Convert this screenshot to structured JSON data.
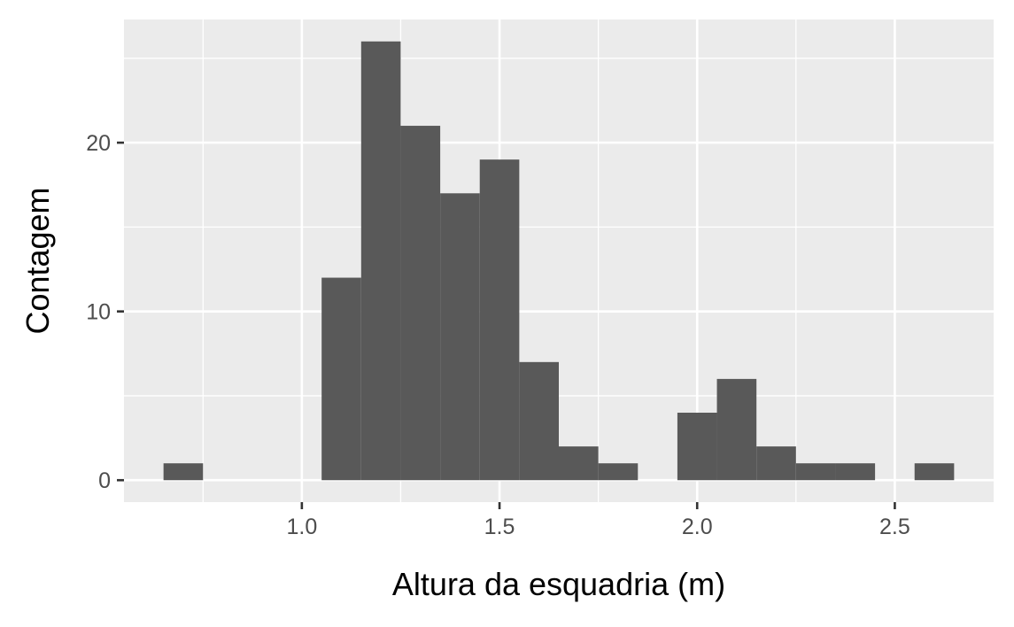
{
  "chart_data": {
    "type": "bar",
    "xlabel": "Altura da esquadria (m)",
    "ylabel": "Contagem",
    "bins": [
      {
        "x0": 0.65,
        "x1": 0.75,
        "count": 1
      },
      {
        "x0": 0.75,
        "x1": 0.85,
        "count": 0
      },
      {
        "x0": 0.85,
        "x1": 0.95,
        "count": 0
      },
      {
        "x0": 0.95,
        "x1": 1.05,
        "count": 0
      },
      {
        "x0": 1.05,
        "x1": 1.15,
        "count": 12
      },
      {
        "x0": 1.15,
        "x1": 1.25,
        "count": 26
      },
      {
        "x0": 1.25,
        "x1": 1.35,
        "count": 21
      },
      {
        "x0": 1.35,
        "x1": 1.45,
        "count": 17
      },
      {
        "x0": 1.45,
        "x1": 1.55,
        "count": 19
      },
      {
        "x0": 1.55,
        "x1": 1.65,
        "count": 7
      },
      {
        "x0": 1.65,
        "x1": 1.75,
        "count": 2
      },
      {
        "x0": 1.75,
        "x1": 1.85,
        "count": 1
      },
      {
        "x0": 1.85,
        "x1": 1.95,
        "count": 0
      },
      {
        "x0": 1.95,
        "x1": 2.05,
        "count": 4
      },
      {
        "x0": 2.05,
        "x1": 2.15,
        "count": 6
      },
      {
        "x0": 2.15,
        "x1": 2.25,
        "count": 2
      },
      {
        "x0": 2.25,
        "x1": 2.35,
        "count": 1
      },
      {
        "x0": 2.35,
        "x1": 2.45,
        "count": 1
      },
      {
        "x0": 2.45,
        "x1": 2.55,
        "count": 0
      },
      {
        "x0": 2.55,
        "x1": 2.65,
        "count": 1
      }
    ],
    "xlim": [
      0.55,
      2.75
    ],
    "ylim": [
      -1.3,
      27.3
    ],
    "x_ticks": [
      1.0,
      1.5,
      2.0,
      2.5
    ],
    "x_tick_labels": [
      "1.0",
      "1.5",
      "2.0",
      "2.5"
    ],
    "x_minor_ticks": [
      0.75,
      1.25,
      1.75,
      2.25
    ],
    "y_ticks": [
      0,
      10,
      20
    ],
    "y_tick_labels": [
      "0",
      "10",
      "20"
    ],
    "y_minor_ticks": [
      5,
      15,
      25
    ],
    "grid": true,
    "colors": {
      "panel": "#ebebeb",
      "grid": "#ffffff",
      "bar": "#595959",
      "tick": "#333333",
      "tick_label": "#4d4d4d",
      "title": "#000000"
    }
  }
}
